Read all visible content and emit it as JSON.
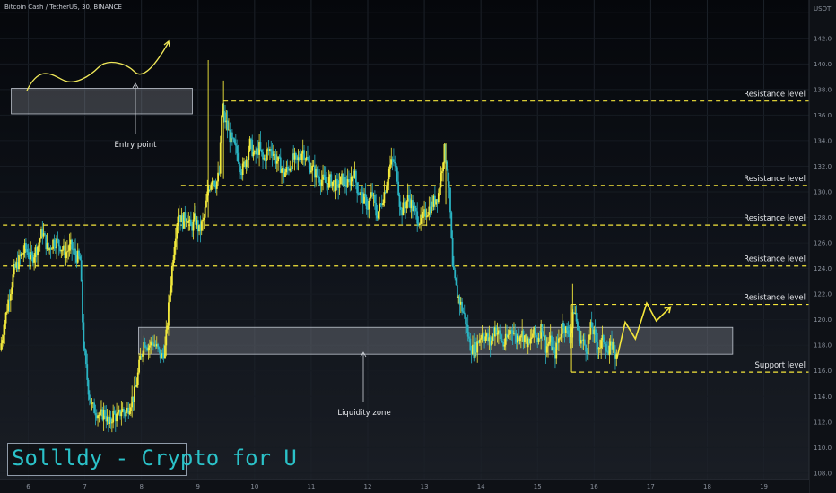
{
  "header": {
    "symbol_line": "Bitcoin Cash / TetherUS, 30, BINANCE"
  },
  "branding": {
    "text": "Sollldy - Crypto for U"
  },
  "annotations": {
    "entry_point": "Entry point",
    "liquidity_zone": "Liquidity zone"
  },
  "chart_data": {
    "type": "candlestick",
    "currency_label": "USDT",
    "x_tick_labels": [
      "6",
      "7",
      "8",
      "9",
      "10",
      "11",
      "12",
      "13",
      "14",
      "15",
      "16",
      "17",
      "18",
      "19"
    ],
    "y_tick_values": [
      108,
      110,
      112,
      114,
      116,
      118,
      120,
      122,
      124,
      126,
      128,
      130,
      132,
      134,
      136,
      138,
      140,
      142,
      144
    ],
    "y_tick_labels": [
      "108.0",
      "110.0",
      "112.0",
      "114.0",
      "116.0",
      "118.0",
      "120.0",
      "122.0",
      "124.0",
      "126.0",
      "128.0",
      "130.0",
      "132.0",
      "134.0",
      "136.0",
      "138.0",
      "140.0",
      "142.0",
      "144.0"
    ],
    "ylim": [
      107.5,
      145
    ],
    "xlim": [
      5.5,
      19.8
    ],
    "levels": [
      {
        "label": "Resistance level",
        "value": 137.1,
        "value_label": "137.1",
        "x_start": 9.45
      },
      {
        "label": "Resistance level",
        "value": 130.5,
        "value_label": "130.5",
        "x_start": 8.7
      },
      {
        "label": "Resistance level",
        "value": 127.4,
        "value_label": "127.4",
        "x_start": 5.55
      },
      {
        "label": "Resistance level",
        "value": 124.2,
        "value_label": "124.2",
        "x_start": 5.55
      },
      {
        "label": "Resistance level",
        "value": 121.2,
        "value_label": "121.2",
        "x_start": 15.6
      },
      {
        "label": "Support level",
        "value": 115.9,
        "value_label": "",
        "x_start": 15.6
      }
    ],
    "current_price": {
      "value": 116.9,
      "label": "116.9"
    },
    "liquidity_zone": {
      "low": 117.3,
      "high": 119.4,
      "x_start": 7.95,
      "x_end": 18.45
    },
    "entry_box": {
      "low": 136.1,
      "high": 138.1,
      "x_start": 5.7,
      "x_end": 8.9
    },
    "close_path": [
      [
        5.5,
        117.6
      ],
      [
        5.65,
        121.6
      ],
      [
        5.75,
        123.8
      ],
      [
        5.85,
        124.8
      ],
      [
        5.95,
        125.6
      ],
      [
        6.05,
        124.7
      ],
      [
        6.15,
        125.6
      ],
      [
        6.25,
        126.9
      ],
      [
        6.35,
        125.4
      ],
      [
        6.45,
        126.2
      ],
      [
        6.55,
        125.9
      ],
      [
        6.65,
        125.2
      ],
      [
        6.75,
        125.7
      ],
      [
        6.85,
        125.0
      ],
      [
        6.92,
        124.6
      ],
      [
        6.97,
        118.5
      ],
      [
        7.02,
        116.2
      ],
      [
        7.07,
        114.3
      ],
      [
        7.13,
        113.1
      ],
      [
        7.2,
        112.9
      ],
      [
        7.27,
        112.4
      ],
      [
        7.35,
        112.8
      ],
      [
        7.42,
        111.7
      ],
      [
        7.5,
        112.6
      ],
      [
        7.58,
        112.3
      ],
      [
        7.65,
        113.0
      ],
      [
        7.72,
        112.6
      ],
      [
        7.8,
        113.5
      ],
      [
        7.87,
        114.1
      ],
      [
        7.92,
        115.2
      ],
      [
        7.98,
        117.0
      ],
      [
        8.05,
        118.4
      ],
      [
        8.12,
        117.9
      ],
      [
        8.2,
        118.3
      ],
      [
        8.28,
        117.7
      ],
      [
        8.35,
        117.1
      ],
      [
        8.42,
        117.8
      ],
      [
        8.5,
        122.0
      ],
      [
        8.58,
        126.0
      ],
      [
        8.65,
        128.5
      ],
      [
        8.72,
        127.6
      ],
      [
        8.8,
        128.2
      ],
      [
        8.87,
        127.1
      ],
      [
        8.95,
        127.9
      ],
      [
        9.02,
        126.9
      ],
      [
        9.1,
        127.8
      ],
      [
        9.18,
        130.1
      ],
      [
        9.25,
        131.2
      ],
      [
        9.32,
        130.6
      ],
      [
        9.38,
        131.5
      ],
      [
        9.42,
        136.4
      ],
      [
        9.48,
        135.6
      ],
      [
        9.55,
        134.5
      ],
      [
        9.62,
        133.7
      ],
      [
        9.7,
        132.9
      ],
      [
        9.78,
        131.6
      ],
      [
        9.85,
        132.6
      ],
      [
        9.92,
        133.8
      ],
      [
        10.0,
        132.7
      ],
      [
        10.08,
        133.5
      ],
      [
        10.15,
        132.4
      ],
      [
        10.22,
        133.1
      ],
      [
        10.3,
        133.4
      ],
      [
        10.38,
        132.5
      ],
      [
        10.45,
        132.1
      ],
      [
        10.52,
        131.4
      ],
      [
        10.6,
        131.9
      ],
      [
        10.68,
        132.6
      ],
      [
        10.75,
        132.3
      ],
      [
        10.85,
        133.3
      ],
      [
        10.95,
        132.2
      ],
      [
        11.05,
        131.6
      ],
      [
        11.15,
        131.1
      ],
      [
        11.25,
        130.7
      ],
      [
        11.35,
        130.9
      ],
      [
        11.45,
        130.4
      ],
      [
        11.55,
        131.0
      ],
      [
        11.65,
        130.5
      ],
      [
        11.75,
        131.6
      ],
      [
        11.82,
        130.2
      ],
      [
        11.9,
        129.6
      ],
      [
        12.0,
        128.9
      ],
      [
        12.08,
        129.9
      ],
      [
        12.15,
        128.2
      ],
      [
        12.22,
        128.8
      ],
      [
        12.3,
        130.1
      ],
      [
        12.38,
        131.9
      ],
      [
        12.45,
        132.5
      ],
      [
        12.52,
        131.3
      ],
      [
        12.58,
        128.4
      ],
      [
        12.65,
        128.9
      ],
      [
        12.72,
        129.6
      ],
      [
        12.8,
        128.7
      ],
      [
        12.88,
        128.0
      ],
      [
        12.95,
        127.6
      ],
      [
        13.02,
        128.4
      ],
      [
        13.1,
        128.8
      ],
      [
        13.18,
        129.3
      ],
      [
        13.25,
        129.9
      ],
      [
        13.3,
        131.6
      ],
      [
        13.35,
        133.3
      ],
      [
        13.4,
        132.1
      ],
      [
        13.45,
        129.0
      ],
      [
        13.5,
        123.9
      ],
      [
        13.57,
        122.2
      ],
      [
        13.65,
        121.1
      ],
      [
        13.72,
        120.1
      ],
      [
        13.8,
        118.1
      ],
      [
        13.87,
        117.5
      ],
      [
        13.95,
        118.3
      ],
      [
        14.02,
        119.0
      ],
      [
        14.1,
        118.6
      ],
      [
        14.17,
        118.1
      ],
      [
        14.25,
        119.4
      ],
      [
        14.32,
        118.8
      ],
      [
        14.4,
        118.0
      ],
      [
        14.48,
        118.7
      ],
      [
        14.55,
        119.5
      ],
      [
        14.62,
        118.4
      ],
      [
        14.7,
        119.1
      ],
      [
        14.78,
        118.6
      ],
      [
        14.85,
        117.9
      ],
      [
        14.92,
        119.0
      ],
      [
        15.0,
        118.5
      ],
      [
        15.08,
        119.6
      ],
      [
        15.15,
        117.8
      ],
      [
        15.22,
        118.4
      ],
      [
        15.3,
        117.2
      ],
      [
        15.38,
        118.6
      ],
      [
        15.45,
        119.8
      ],
      [
        15.52,
        118.9
      ],
      [
        15.6,
        119.2
      ],
      [
        15.65,
        121.0
      ],
      [
        15.72,
        118.9
      ],
      [
        15.8,
        118.2
      ],
      [
        15.88,
        117.8
      ],
      [
        15.95,
        119.6
      ],
      [
        16.02,
        118.4
      ],
      [
        16.1,
        117.9
      ],
      [
        16.18,
        118.6
      ],
      [
        16.25,
        117.2
      ],
      [
        16.32,
        118.2
      ],
      [
        16.4,
        116.9
      ]
    ],
    "projection": [
      [
        16.4,
        116.9
      ],
      [
        16.55,
        119.8
      ],
      [
        16.73,
        118.5
      ],
      [
        16.93,
        121.3
      ],
      [
        17.1,
        119.9
      ],
      [
        17.35,
        121.0
      ]
    ]
  }
}
